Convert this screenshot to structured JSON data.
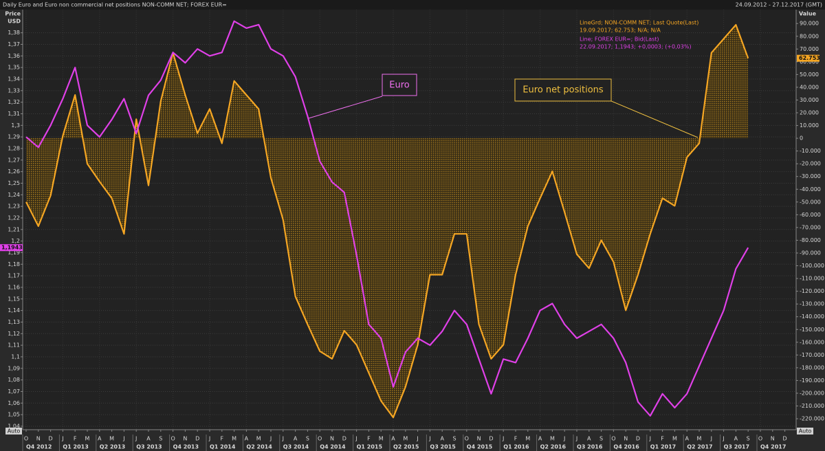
{
  "chart_data": {
    "type": "line",
    "title": "Daily Euro and Euro non commercial net positions NON-COMM NET; FOREX EUR=",
    "date_range": "24.09.2012 - 27.12.2017 (GMT)",
    "y_label": "Price",
    "y_unit": "USD",
    "y2_label": "Value",
    "y_axis_mode": "Auto",
    "y2_axis_mode": "Auto",
    "grid": true,
    "categories": [
      "O",
      "N",
      "D",
      "J",
      "F",
      "M",
      "A",
      "M",
      "J",
      "J",
      "A",
      "S",
      "O",
      "N",
      "D",
      "J",
      "F",
      "M",
      "A",
      "M",
      "J",
      "J",
      "A",
      "S",
      "O",
      "N",
      "D",
      "J",
      "F",
      "M",
      "A",
      "M",
      "J",
      "J",
      "A",
      "S",
      "O",
      "N",
      "D",
      "J",
      "F",
      "M",
      "A",
      "M",
      "J",
      "J",
      "A",
      "S",
      "O",
      "N",
      "D",
      "J",
      "F",
      "M",
      "A",
      "M",
      "J",
      "J",
      "A",
      "S",
      "O",
      "N",
      "D"
    ],
    "quarters": [
      "Q4 2012",
      "Q1 2013",
      "Q2 2013",
      "Q3 2013",
      "Q4 2013",
      "Q1 2014",
      "Q2 2014",
      "Q3 2014",
      "Q4 2014",
      "Q1 2015",
      "Q2 2015",
      "Q3 2015",
      "Q4 2015",
      "Q1 2016",
      "Q2 2016",
      "Q3 2016",
      "Q4 2016",
      "Q1 2017",
      "Q2 2017",
      "Q3 2017",
      "Q4 2017"
    ],
    "ylim": [
      1.037,
      1.4
    ],
    "yticks": [
      {
        "value": 1.04,
        "label": "1,04"
      },
      {
        "value": 1.05,
        "label": "1,05"
      },
      {
        "value": 1.06,
        "label": "1,06"
      },
      {
        "value": 1.07,
        "label": "1,07"
      },
      {
        "value": 1.08,
        "label": "1,08"
      },
      {
        "value": 1.09,
        "label": "1,09"
      },
      {
        "value": 1.1,
        "label": "1,1"
      },
      {
        "value": 1.11,
        "label": "1,11"
      },
      {
        "value": 1.12,
        "label": "1,12"
      },
      {
        "value": 1.13,
        "label": "1,13"
      },
      {
        "value": 1.14,
        "label": "1,14"
      },
      {
        "value": 1.15,
        "label": "1,15"
      },
      {
        "value": 1.16,
        "label": "1,16"
      },
      {
        "value": 1.17,
        "label": "1,17"
      },
      {
        "value": 1.18,
        "label": "1,18"
      },
      {
        "value": 1.19,
        "label": "1,19"
      },
      {
        "value": 1.2,
        "label": "1,2"
      },
      {
        "value": 1.21,
        "label": "1,21"
      },
      {
        "value": 1.22,
        "label": "1,22"
      },
      {
        "value": 1.23,
        "label": "1,23"
      },
      {
        "value": 1.24,
        "label": "1,24"
      },
      {
        "value": 1.25,
        "label": "1,25"
      },
      {
        "value": 1.26,
        "label": "1,26"
      },
      {
        "value": 1.27,
        "label": "1,27"
      },
      {
        "value": 1.28,
        "label": "1,28"
      },
      {
        "value": 1.29,
        "label": "1,29"
      },
      {
        "value": 1.3,
        "label": "1,3"
      },
      {
        "value": 1.31,
        "label": "1,31"
      },
      {
        "value": 1.32,
        "label": "1,32"
      },
      {
        "value": 1.33,
        "label": "1,33"
      },
      {
        "value": 1.34,
        "label": "1,34"
      },
      {
        "value": 1.35,
        "label": "1,35"
      },
      {
        "value": 1.36,
        "label": "1,36"
      },
      {
        "value": 1.37,
        "label": "1,37"
      },
      {
        "value": 1.38,
        "label": "1,38"
      }
    ],
    "y2lim": [
      -228600,
      100900
    ],
    "y2ticks": [
      {
        "value": -220000,
        "label": "-220.000"
      },
      {
        "value": -210000,
        "label": "-210.000"
      },
      {
        "value": -200000,
        "label": "-200.000"
      },
      {
        "value": -190000,
        "label": "-190.000"
      },
      {
        "value": -180000,
        "label": "-180.000"
      },
      {
        "value": -170000,
        "label": "-170.000"
      },
      {
        "value": -160000,
        "label": "-160.000"
      },
      {
        "value": -150000,
        "label": "-150.000"
      },
      {
        "value": -140000,
        "label": "-140.000"
      },
      {
        "value": -130000,
        "label": "-130.000"
      },
      {
        "value": -120000,
        "label": "-120.000"
      },
      {
        "value": -110000,
        "label": "-110.000"
      },
      {
        "value": -100000,
        "label": "-100.000"
      },
      {
        "value": -90000,
        "label": "-90.000"
      },
      {
        "value": -80000,
        "label": "-80.000"
      },
      {
        "value": -70000,
        "label": "-70.000"
      },
      {
        "value": -60000,
        "label": "-60.000"
      },
      {
        "value": -50000,
        "label": "-50.000"
      },
      {
        "value": -40000,
        "label": "-40.000"
      },
      {
        "value": -30000,
        "label": "-30.000"
      },
      {
        "value": -20000,
        "label": "-20.000"
      },
      {
        "value": -10000,
        "label": "-10.000"
      },
      0,
      {
        "value": 10000,
        "label": "10.000"
      },
      {
        "value": 20000,
        "label": "20.000"
      },
      {
        "value": 30000,
        "label": "30.000"
      },
      {
        "value": 40000,
        "label": "40.000"
      },
      {
        "value": 50000,
        "label": "50.000"
      },
      {
        "value": 60000,
        "label": "60.000"
      },
      {
        "value": 70000,
        "label": "70.000"
      },
      {
        "value": 80000,
        "label": "80.000"
      },
      {
        "value": 90000,
        "label": "90.000"
      }
    ],
    "series": [
      {
        "name": "LineGrd; NON-COMM NET; Last Quote(Last)",
        "detail": "19.09.2017; 62.753; N/A; N/A",
        "color": "#f5a623",
        "axis": "y2",
        "fill": true,
        "last_label": "62.753",
        "values": [
          -50000,
          -69000,
          -45000,
          2000,
          34000,
          -20000,
          -34000,
          -47000,
          -75000,
          15000,
          -37000,
          29000,
          67000,
          34000,
          4000,
          23000,
          -4000,
          45000,
          34000,
          23000,
          -31000,
          -64000,
          -124000,
          -146000,
          -167000,
          -173000,
          -151000,
          -162000,
          -184000,
          -206000,
          -219000,
          -195000,
          -162000,
          -107000,
          -107000,
          -75000,
          -75000,
          -146000,
          -173000,
          -162000,
          -107000,
          -69000,
          -47000,
          -26000,
          -58000,
          -91000,
          -102000,
          -80000,
          -97000,
          -135000,
          -107000,
          -75000,
          -47000,
          -53000,
          -15000,
          -4000,
          67000,
          78000,
          89000,
          62753,
          null,
          null,
          null
        ]
      },
      {
        "name": "Line; FOREX EUR=; Bid(Last)",
        "detail": "22.09.2017; 1,1943; +0,0003; (+0,03%)",
        "color": "#e040e8",
        "axis": "y",
        "last_label": "1,1943",
        "values": [
          1.29,
          1.281,
          1.3,
          1.323,
          1.35,
          1.3,
          1.29,
          1.305,
          1.323,
          1.293,
          1.326,
          1.339,
          1.363,
          1.354,
          1.366,
          1.36,
          1.363,
          1.39,
          1.384,
          1.387,
          1.366,
          1.36,
          1.342,
          1.308,
          1.269,
          1.251,
          1.242,
          1.188,
          1.128,
          1.116,
          1.074,
          1.104,
          1.116,
          1.11,
          1.122,
          1.14,
          1.128,
          1.098,
          1.068,
          1.098,
          1.095,
          1.116,
          1.14,
          1.146,
          1.128,
          1.116,
          1.122,
          1.128,
          1.116,
          1.095,
          1.061,
          1.049,
          1.068,
          1.056,
          1.068,
          1.092,
          1.116,
          1.14,
          1.176,
          1.1943,
          null,
          null,
          null
        ]
      }
    ],
    "annotations": [
      "Euro",
      "Euro net positions"
    ]
  }
}
